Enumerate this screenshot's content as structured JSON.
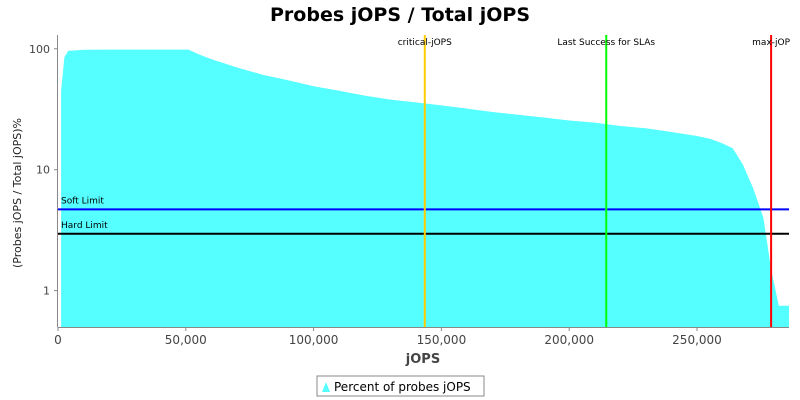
{
  "chart_data": {
    "type": "area",
    "title": "Probes jOPS / Total jOPS",
    "xlabel": "jOPS",
    "ylabel": "(Probes jOPS / Total jOPS)%",
    "xlim": [
      0,
      286000
    ],
    "ylim": [
      0.5,
      130
    ],
    "yscale": "log",
    "x_ticks": [
      {
        "value": 0,
        "label": "0"
      },
      {
        "value": 50000,
        "label": "50,000"
      },
      {
        "value": 100000,
        "label": "100,000"
      },
      {
        "value": 150000,
        "label": "150,000"
      },
      {
        "value": 200000,
        "label": "200,000"
      },
      {
        "value": 250000,
        "label": "250,000"
      }
    ],
    "y_ticks": [
      {
        "value": 1,
        "label": "1"
      },
      {
        "value": 10,
        "label": "10"
      },
      {
        "value": 100,
        "label": "100"
      }
    ],
    "series": [
      {
        "name": "Percent of probes jOPS",
        "color": "#55ffff",
        "x": [
          1200,
          2500,
          4000,
          10000,
          20000,
          30000,
          40000,
          51000,
          55000,
          60000,
          65000,
          70000,
          80000,
          90000,
          100000,
          110000,
          120000,
          130000,
          140000,
          150000,
          160000,
          170000,
          180000,
          190000,
          200000,
          210000,
          220000,
          230000,
          240000,
          250000,
          255000,
          260000,
          264000,
          268000,
          272000,
          276000,
          279000,
          282000,
          286000
        ],
        "values": [
          45,
          85,
          96,
          98,
          98.5,
          98.5,
          98.5,
          98.5,
          90,
          82,
          76,
          70,
          61,
          55,
          49,
          45,
          41,
          38,
          36,
          34,
          32,
          30,
          28.5,
          27,
          25.5,
          24.5,
          23,
          22,
          20.5,
          19,
          18,
          16.5,
          15,
          11,
          7,
          4,
          1.5,
          0.75,
          0.75
        ]
      }
    ],
    "vertical_markers": [
      {
        "label": "critical-jOPS",
        "x": 143500,
        "color": "#ffcc00"
      },
      {
        "label": "Last Success for SLAs",
        "x": 214500,
        "color": "#00ff00"
      },
      {
        "label": "max-jOP",
        "x": 279000,
        "color": "#ff0000"
      }
    ],
    "horizontal_markers": [
      {
        "label": "Soft Limit",
        "y": 4.7,
        "color": "#0000ff"
      },
      {
        "label": "Hard Limit",
        "y": 2.95,
        "color": "#000000"
      }
    ],
    "legend": {
      "position": "bottom",
      "entries": [
        "Percent of probes jOPS"
      ]
    },
    "grid": false
  }
}
